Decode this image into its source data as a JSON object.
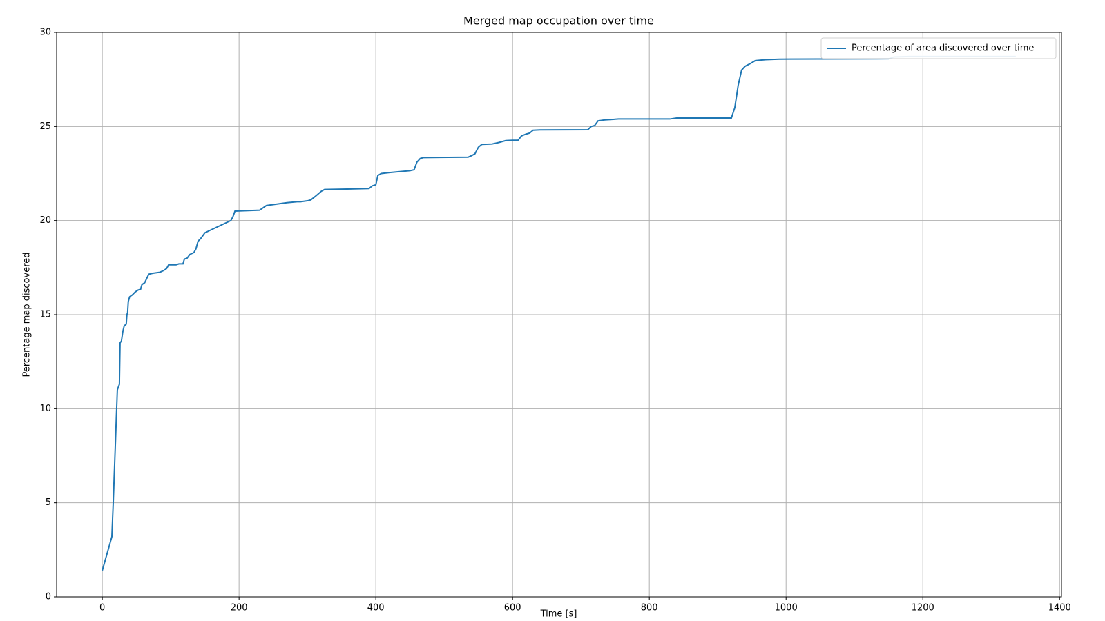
{
  "chart_data": {
    "type": "line",
    "title": "Merged map occupation over time",
    "xlabel": "Time [s]",
    "ylabel": "Percentage map discovered",
    "x": [
      0,
      14,
      16,
      20,
      22,
      25,
      26,
      28,
      30,
      32,
      35,
      36,
      37,
      38,
      40,
      44,
      48,
      52,
      56,
      58,
      62,
      66,
      68,
      74,
      84,
      90,
      94,
      97,
      108,
      112,
      118,
      120,
      124,
      128,
      134,
      137,
      140,
      144,
      150,
      188,
      191,
      194,
      230,
      240,
      250,
      270,
      285,
      290,
      300,
      305,
      312,
      320,
      325,
      390,
      395,
      400,
      403,
      408,
      420,
      450,
      456,
      460,
      465,
      470,
      535,
      540,
      545,
      550,
      555,
      570,
      580,
      590,
      600,
      608,
      613,
      620,
      625,
      630,
      640,
      710,
      715,
      720,
      725,
      735,
      755,
      830,
      840,
      920,
      925,
      930,
      935,
      940,
      948,
      955,
      970,
      990,
      1150,
      1158,
      1180,
      1336
    ],
    "series": [
      {
        "name": "Percentage of area discovered over time",
        "color": "#1f77b4",
        "values": [
          1.4,
          3.2,
          5,
          9,
          11,
          11.3,
          13.5,
          13.6,
          14.1,
          14.4,
          14.5,
          15,
          15.1,
          15.7,
          15.95,
          16.05,
          16.2,
          16.3,
          16.35,
          16.6,
          16.7,
          17,
          17.15,
          17.2,
          17.25,
          17.35,
          17.45,
          17.65,
          17.65,
          17.7,
          17.7,
          17.95,
          18,
          18.2,
          18.3,
          18.5,
          18.9,
          19.05,
          19.35,
          20,
          20.2,
          20.5,
          20.55,
          20.8,
          20.85,
          20.95,
          21,
          21,
          21.05,
          21.1,
          21.3,
          21.55,
          21.65,
          21.7,
          21.85,
          21.9,
          22.4,
          22.5,
          22.55,
          22.65,
          22.7,
          23.1,
          23.3,
          23.35,
          23.37,
          23.45,
          23.55,
          23.9,
          24.05,
          24.07,
          24.15,
          24.25,
          24.27,
          24.27,
          24.5,
          24.6,
          24.65,
          24.8,
          24.82,
          24.83,
          25,
          25.05,
          25.3,
          25.35,
          25.4,
          25.4,
          25.45,
          25.45,
          26,
          27.2,
          28,
          28.2,
          28.35,
          28.5,
          28.55,
          28.58,
          28.6,
          28.7,
          28.72,
          28.72
        ]
      }
    ],
    "xlim": [
      -66.8,
      1402.8
    ],
    "xticks": [
      0,
      200,
      400,
      600,
      800,
      1000,
      1200,
      1400
    ],
    "ylim": [
      0,
      30
    ],
    "yticks": [
      0,
      5,
      10,
      15,
      20,
      25,
      30
    ],
    "grid": true,
    "legend": "upper right"
  }
}
